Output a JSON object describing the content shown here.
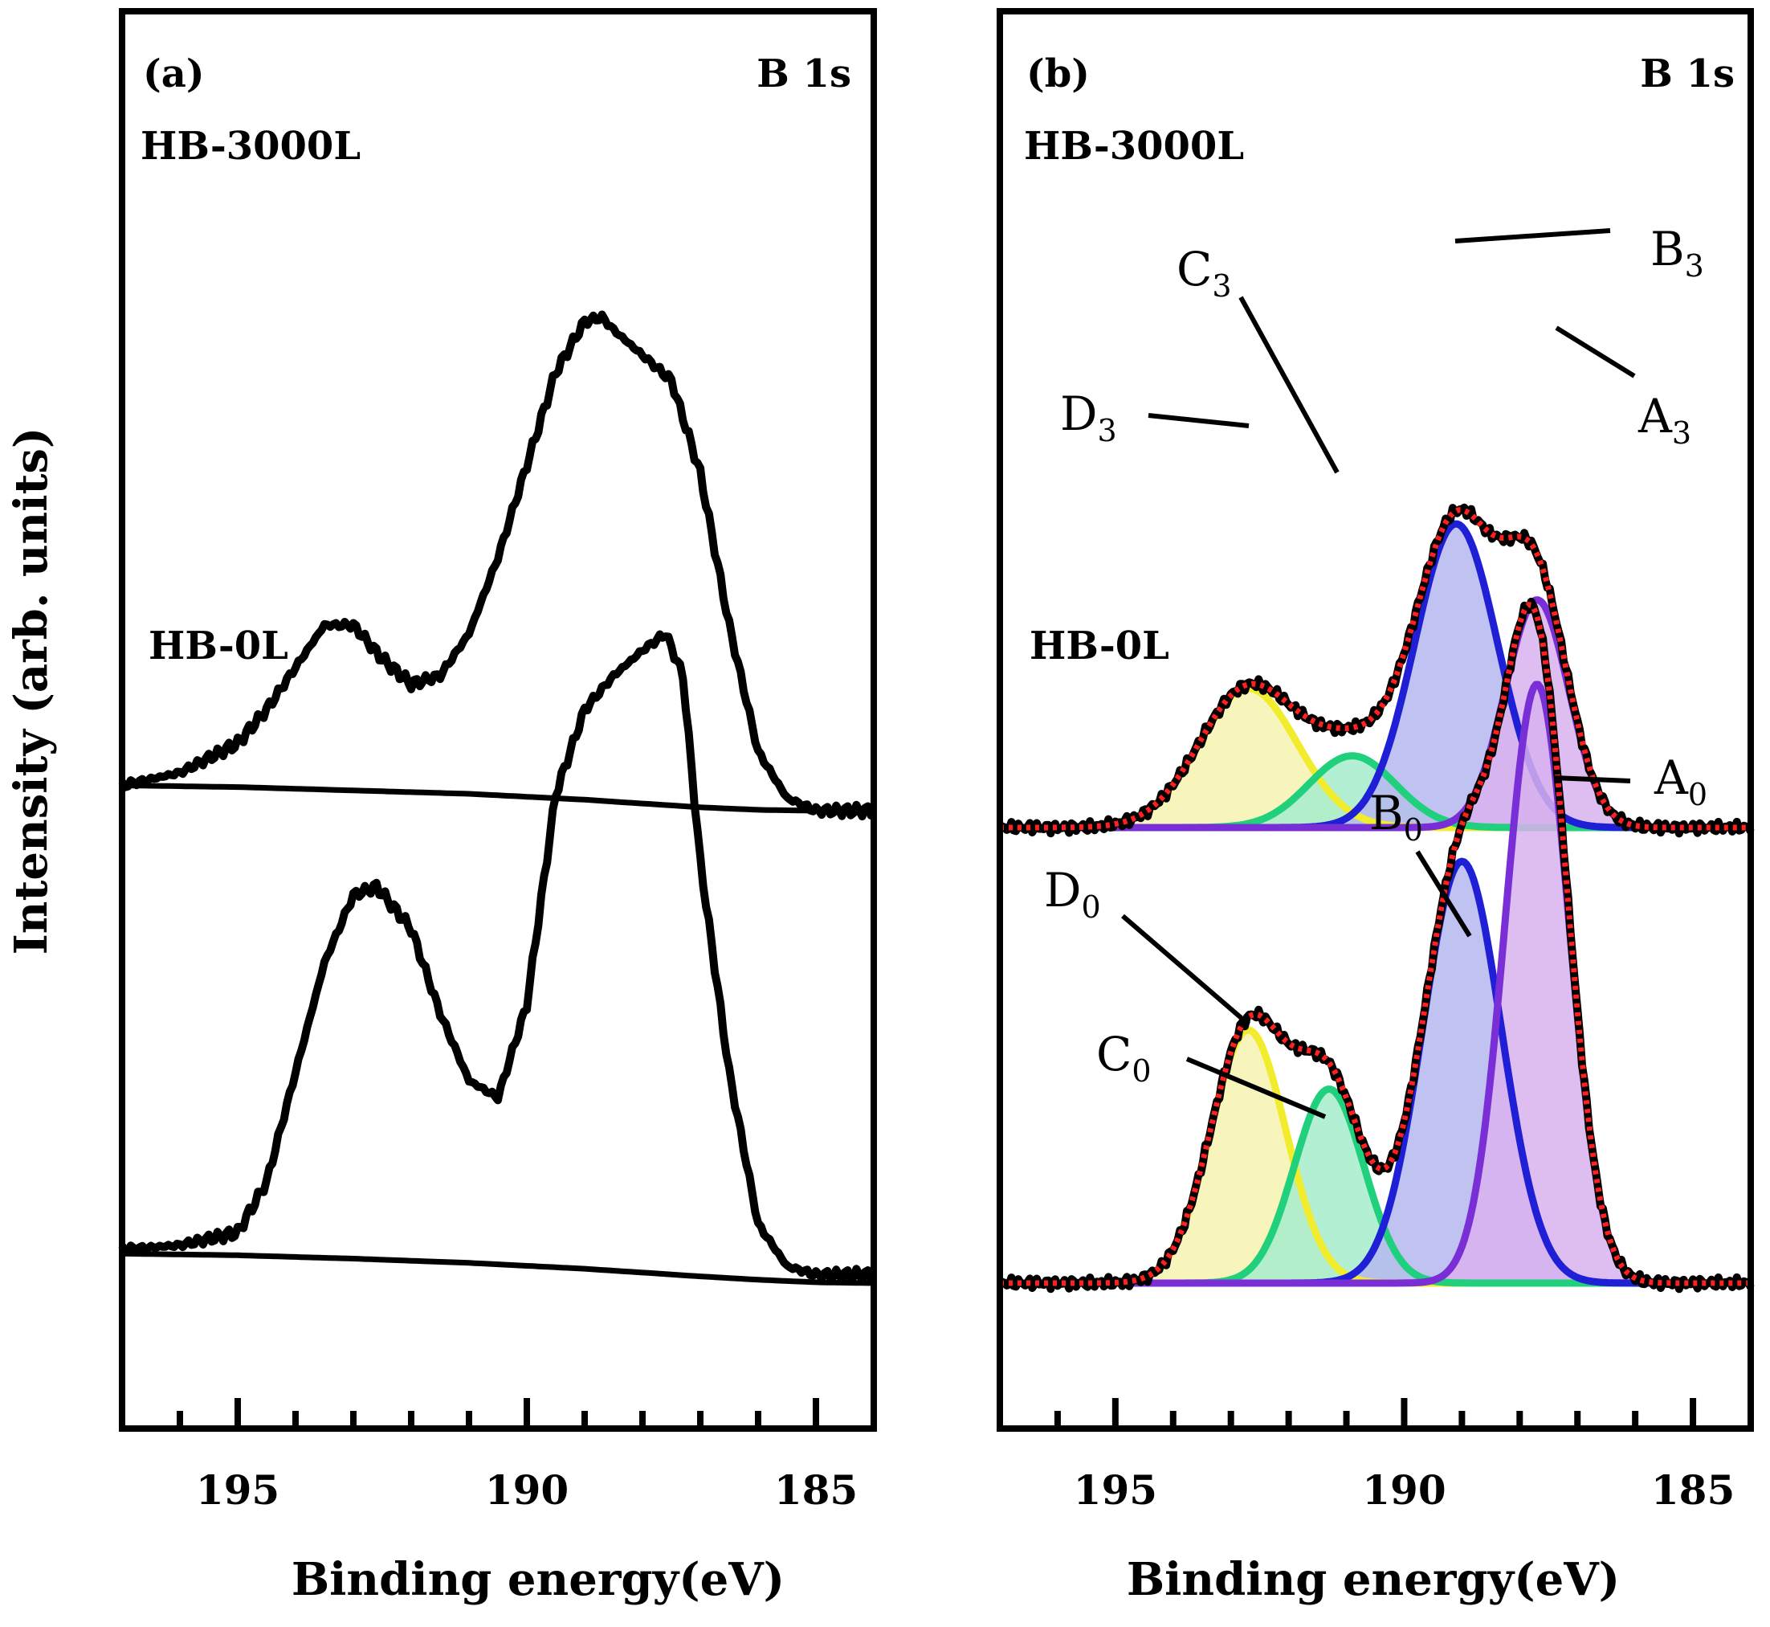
{
  "figure": {
    "ylabel": "Intensity (arb. units)",
    "xlabel": "Binding energy(eV)"
  },
  "chart_data": [
    {
      "type": "line",
      "panel": "(a)",
      "title": "B 1s",
      "xlabel": "Binding energy(eV)",
      "ylabel": "Intensity (arb. units)",
      "xlim": [
        197,
        184
      ],
      "x_reversed": true,
      "xticks": [
        195,
        190,
        185
      ],
      "ylim": [
        0,
        1
      ],
      "grid": false,
      "spectra": [
        {
          "name": "HB-3000L",
          "offset": 0.62,
          "x": [
            197.0,
            196.0,
            195.0,
            194.5,
            194.0,
            193.5,
            193.0,
            192.5,
            192.0,
            191.5,
            191.0,
            190.5,
            190.0,
            189.5,
            189.0,
            188.7,
            188.5,
            188.0,
            187.5,
            187.0,
            186.5,
            186.0,
            185.5,
            185.0,
            184.0
          ],
          "y": [
            0.03,
            0.045,
            0.08,
            0.12,
            0.17,
            0.22,
            0.22,
            0.18,
            0.15,
            0.16,
            0.21,
            0.3,
            0.41,
            0.52,
            0.58,
            0.585,
            0.57,
            0.54,
            0.51,
            0.4,
            0.22,
            0.07,
            0.015,
            0.0,
            0.0
          ],
          "background_x": [
            197.0,
            195.0,
            193.0,
            191.0,
            189.0,
            187.0,
            186.0,
            185.0,
            184.0
          ],
          "background_y": [
            0.03,
            0.028,
            0.024,
            0.02,
            0.013,
            0.004,
            0.001,
            0.0,
            0.0
          ]
        },
        {
          "name": "HB-0L",
          "offset": 0.06,
          "x": [
            197.0,
            196.0,
            195.0,
            194.5,
            194.0,
            193.5,
            193.0,
            192.6,
            192.0,
            191.5,
            191.0,
            190.5,
            190.0,
            189.5,
            189.0,
            188.5,
            188.0,
            187.6,
            187.3,
            187.0,
            186.5,
            186.0,
            185.5,
            185.0,
            184.0
          ],
          "y": [
            0.04,
            0.045,
            0.06,
            0.12,
            0.25,
            0.38,
            0.46,
            0.47,
            0.42,
            0.32,
            0.24,
            0.22,
            0.33,
            0.58,
            0.68,
            0.72,
            0.75,
            0.77,
            0.72,
            0.5,
            0.25,
            0.07,
            0.02,
            0.01,
            0.01
          ],
          "background_x": [
            197.0,
            195.0,
            193.0,
            191.0,
            189.0,
            187.0,
            186.0,
            185.0,
            184.0
          ],
          "background_y": [
            0.035,
            0.033,
            0.029,
            0.024,
            0.017,
            0.008,
            0.004,
            0.001,
            0.0
          ]
        }
      ],
      "annotations": [
        "(a)",
        "B 1s",
        "HB-3000L",
        "HB-0L"
      ]
    },
    {
      "type": "area",
      "panel": "(b)",
      "title": "B 1s",
      "xlabel": "Binding energy(eV)",
      "xlim": [
        197,
        184
      ],
      "x_reversed": true,
      "xticks": [
        195,
        190,
        185
      ],
      "ylim": [
        0,
        1
      ],
      "grid": false,
      "spectra": [
        {
          "name": "HB-3000L",
          "offset": 0.6,
          "components": [
            {
              "label": "D",
              "sub": "3",
              "center": 192.7,
              "height": 0.165,
              "sigma": 0.85,
              "color": "#f2ec2e",
              "fill": "#f6f3b0"
            },
            {
              "label": "C",
              "sub": "3",
              "center": 190.9,
              "height": 0.085,
              "sigma": 0.75,
              "color": "#20d07c",
              "fill": "#a6eccb"
            },
            {
              "label": "B",
              "sub": "3",
              "center": 189.1,
              "height": 0.36,
              "sigma": 0.72,
              "color": "#1f1fd6",
              "fill": "#b5b7ee"
            },
            {
              "label": "A",
              "sub": "3",
              "center": 187.7,
              "height": 0.27,
              "sigma": 0.55,
              "color": "#7a2fd6",
              "fill": "#d8b2ee"
            }
          ],
          "fit": {
            "name": "fit",
            "color": "#ff2020",
            "style": "dotted"
          },
          "measured": {
            "name": "measured",
            "color": "#000000"
          }
        },
        {
          "name": "HB-0L",
          "offset": 0.06,
          "components": [
            {
              "label": "D",
              "sub": "0",
              "center": 192.7,
              "height": 0.3,
              "sigma": 0.65,
              "color": "#f2ec2e",
              "fill": "#f6f3b0"
            },
            {
              "label": "C",
              "sub": "0",
              "center": 191.3,
              "height": 0.23,
              "sigma": 0.6,
              "color": "#20d07c",
              "fill": "#a6eccb"
            },
            {
              "label": "B",
              "sub": "0",
              "center": 189.0,
              "height": 0.5,
              "sigma": 0.68,
              "color": "#1f1fd6",
              "fill": "#b5b7ee"
            },
            {
              "label": "A",
              "sub": "0",
              "center": 187.7,
              "height": 0.71,
              "sigma": 0.55,
              "color": "#7a2fd6",
              "fill": "#d8b2ee"
            }
          ],
          "fit": {
            "name": "fit",
            "color": "#ff2020",
            "style": "dotted"
          },
          "measured": {
            "name": "measured",
            "color": "#000000"
          }
        }
      ],
      "annotations": [
        "(b)",
        "B 1s",
        "HB-3000L",
        "HB-0L"
      ]
    }
  ]
}
